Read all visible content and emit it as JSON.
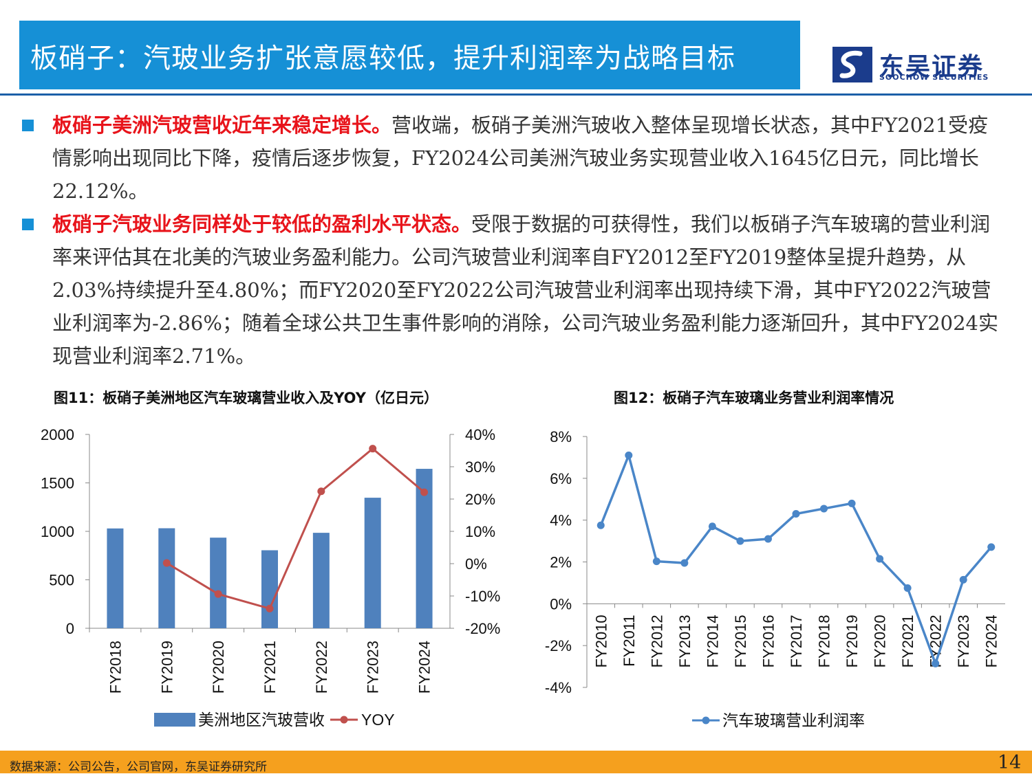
{
  "header": {
    "title": "板硝子：汽玻业务扩张意愿较低，提升利润率为战略目标",
    "logo_cn": "东吴证券",
    "logo_en": "SOOCHOW SECURITIES"
  },
  "bullets": [
    {
      "highlight": "板硝子美洲汽玻营收近年来稳定增长。",
      "text": "营收端，板硝子美洲汽玻收入整体呈现增长状态，其中FY2021受疫情影响出现同比下降，疫情后逐步恢复，FY2024公司美洲汽玻业务实现营业收入1645亿日元，同比增长22.12%。"
    },
    {
      "highlight": "板硝子汽玻业务同样处于较低的盈利水平状态。",
      "text": "受限于数据的可获得性，我们以板硝子汽车玻璃的营业利润率来评估其在北美的汽玻业务盈利能力。公司汽玻营业利润率自FY2012至FY2019整体呈提升趋势，从2.03%持续提升至4.80%；而FY2020至FY2022公司汽玻营业利润率出现持续下滑，其中FY2022汽玻营业利润率为-2.86%；随着全球公共卫生事件影响的消除，公司汽玻业务盈利能力逐渐回升，其中FY2024实现营业利润率2.71%。"
    }
  ],
  "figures": {
    "fig11_caption": "图11：板硝子美洲地区汽车玻璃营业收入及YOY（亿日元）",
    "fig12_caption": "图12：板硝子汽车玻璃业务营业利润率情况"
  },
  "chart_data": [
    {
      "type": "bar",
      "categories": [
        "FY2018",
        "FY2019",
        "FY2020",
        "FY2021",
        "FY2022",
        "FY2023",
        "FY2024"
      ],
      "series": [
        {
          "name": "美洲地区汽玻营收",
          "type": "bar",
          "axis": "left",
          "values": [
            1030,
            1032,
            935,
            805,
            985,
            1347,
            1645
          ]
        },
        {
          "name": "YOY",
          "type": "line",
          "axis": "right",
          "values": [
            null,
            0.2,
            -9.4,
            -13.9,
            22.4,
            35.6,
            22.1
          ]
        }
      ],
      "ylim": [
        0,
        2000
      ],
      "yticks": [
        0,
        500,
        1000,
        1500,
        2000
      ],
      "y2lim": [
        -20,
        40
      ],
      "y2ticks": [
        "-20%",
        "-10%",
        "0%",
        "10%",
        "20%",
        "30%",
        "40%"
      ],
      "legend_position": "bottom",
      "colors": {
        "bar": "#4f81bd",
        "line": "#c0504d"
      }
    },
    {
      "type": "line",
      "categories": [
        "FY2010",
        "FY2011",
        "FY2012",
        "FY2013",
        "FY2014",
        "FY2015",
        "FY2016",
        "FY2017",
        "FY2018",
        "FY2019",
        "FY2020",
        "FY2021",
        "FY2022",
        "FY2023",
        "FY2024"
      ],
      "series": [
        {
          "name": "汽车玻璃营业利润率",
          "values": [
            3.75,
            7.1,
            2.03,
            1.95,
            3.7,
            3.0,
            3.1,
            4.3,
            4.55,
            4.8,
            2.15,
            0.75,
            -2.86,
            1.15,
            2.71
          ]
        }
      ],
      "ylim": [
        -4,
        8
      ],
      "yticks": [
        "-4%",
        "-2%",
        "0%",
        "2%",
        "4%",
        "6%",
        "8%"
      ],
      "legend_position": "bottom",
      "colors": {
        "line": "#4a86c8"
      }
    }
  ],
  "footer": {
    "source": "数据来源：公司公告，公司官网，东吴证券研究所",
    "page": "14"
  }
}
